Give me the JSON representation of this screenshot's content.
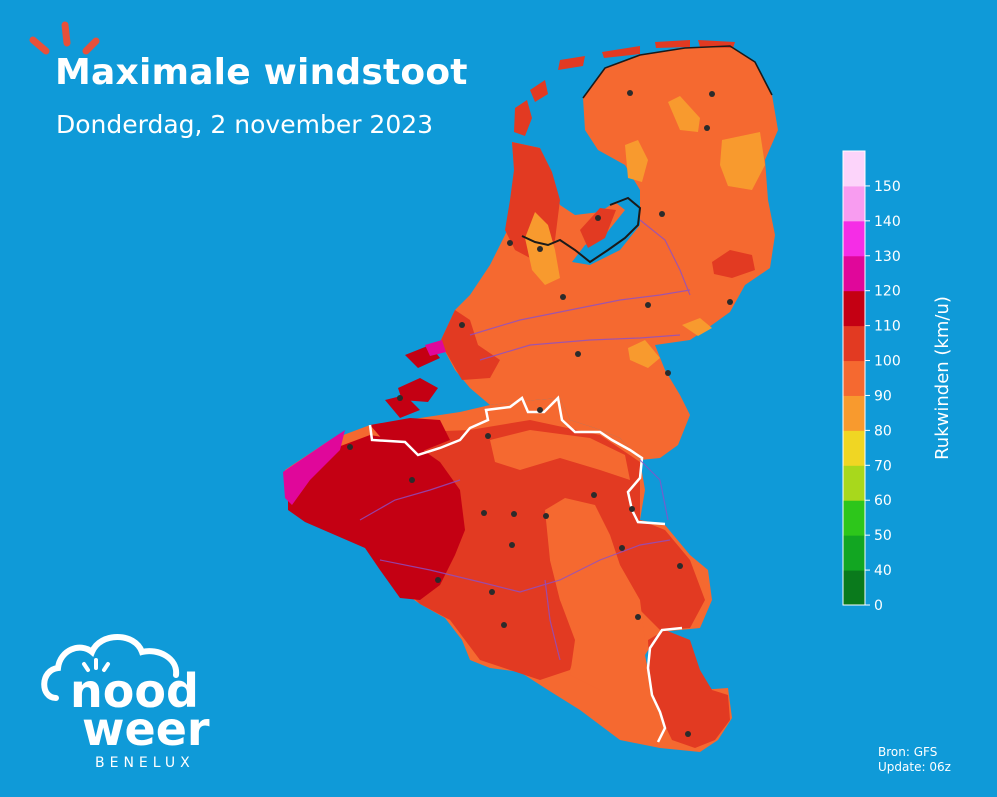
{
  "header": {
    "title": "Maximale windstoot",
    "subtitle": "Donderdag, 2 november 2023"
  },
  "legend": {
    "axis_label": "Rukwinden (km/u)",
    "bins": [
      {
        "from": 0,
        "to": 40,
        "color": "#0a7a1c"
      },
      {
        "from": 40,
        "to": 50,
        "color": "#12a622"
      },
      {
        "from": 50,
        "to": 60,
        "color": "#2dc61b"
      },
      {
        "from": 60,
        "to": 70,
        "color": "#a8d81c"
      },
      {
        "from": 70,
        "to": 80,
        "color": "#f0d623"
      },
      {
        "from": 80,
        "to": 90,
        "color": "#f89a2e"
      },
      {
        "from": 90,
        "to": 100,
        "color": "#f56930"
      },
      {
        "from": 100,
        "to": 110,
        "color": "#e23a22"
      },
      {
        "from": 110,
        "to": 120,
        "color": "#c40013"
      },
      {
        "from": 120,
        "to": 130,
        "color": "#e0079a"
      },
      {
        "from": 130,
        "to": 140,
        "color": "#f52de6"
      },
      {
        "from": 140,
        "to": 150,
        "color": "#f89cf0"
      },
      {
        "from": 150,
        "to": 160,
        "color": "#fcd4fa"
      }
    ],
    "ticks": [
      "0",
      "40",
      "50",
      "60",
      "70",
      "80",
      "90",
      "100",
      "110",
      "120",
      "130",
      "140",
      "150"
    ]
  },
  "logo": {
    "line1": "nood",
    "line2": "weer",
    "sub": "BENELUX"
  },
  "source": {
    "line1": "Bron: GFS",
    "line2": "Update: 06z"
  },
  "colors": {
    "background": "#0f9ad8",
    "logo_rays": "#e8503a",
    "orange": "#f56930",
    "light_orange": "#f89a2e",
    "red": "#e23a22",
    "dark_red": "#c40013",
    "magenta": "#e0079a"
  }
}
